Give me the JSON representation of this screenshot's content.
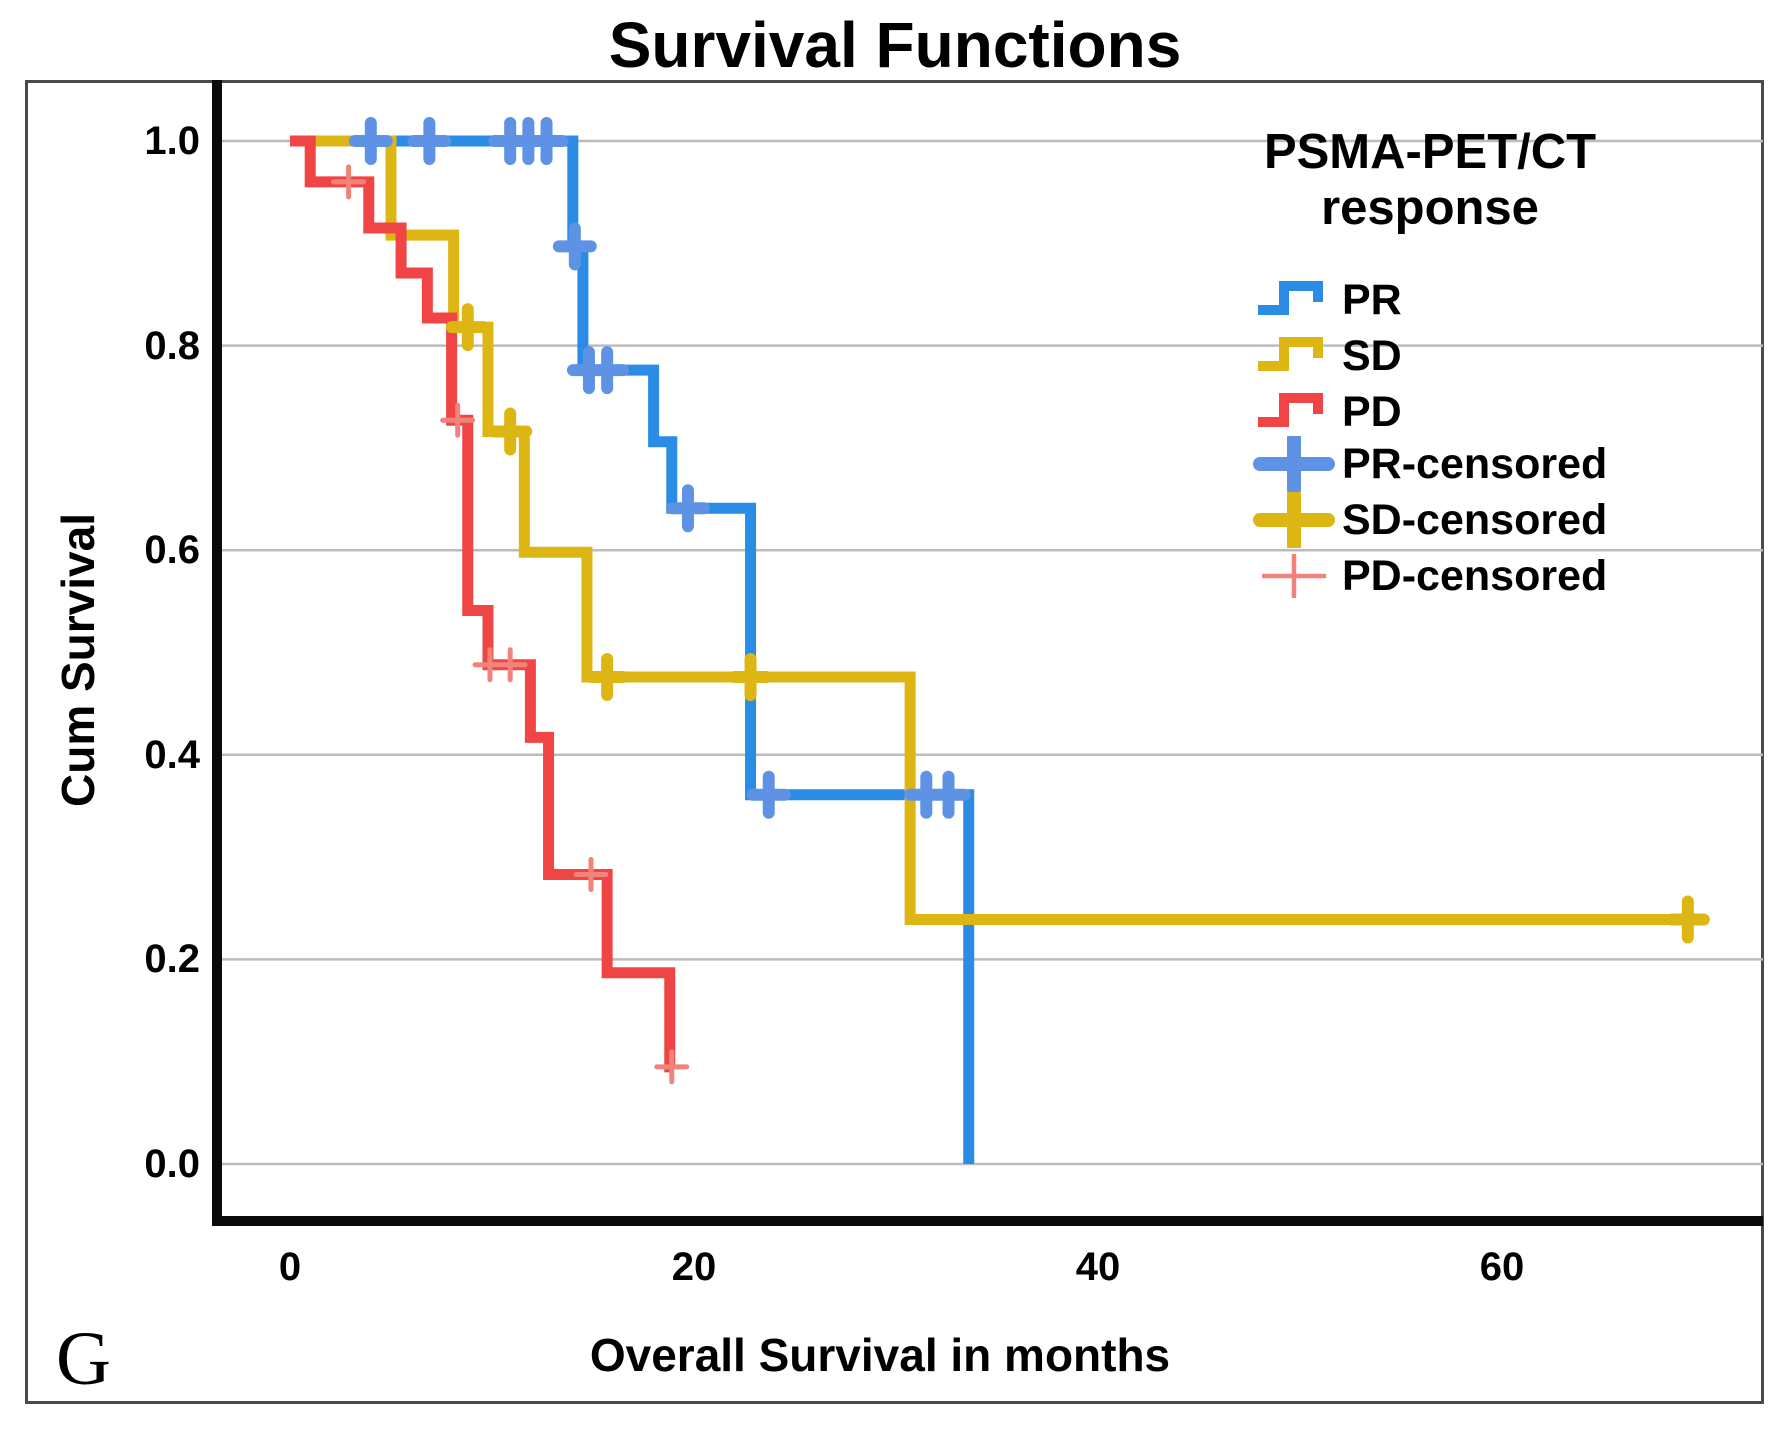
{
  "figure": {
    "title": "Survival Functions",
    "panel_label": "G",
    "x_axis": {
      "label": "Overall Survival in months",
      "tick_labels": [
        "0",
        "20",
        "40",
        "60"
      ],
      "tick_values": [
        0,
        20,
        40,
        60
      ]
    },
    "y_axis": {
      "label": "Cum Survival",
      "tick_labels": [
        "1.0",
        "0.8",
        "0.6",
        "0.4",
        "0.2",
        "0.0"
      ],
      "tick_values": [
        1.0,
        0.8,
        0.6,
        0.4,
        0.2,
        0.0
      ]
    }
  },
  "legend": {
    "title_line1": "PSMA-PET/CT",
    "title_line2": "response",
    "items": [
      {
        "label": "PR",
        "marker": "step",
        "color": "#2b8ce6"
      },
      {
        "label": "SD",
        "marker": "step",
        "color": "#ddb614"
      },
      {
        "label": "PD",
        "marker": "step",
        "color": "#ef4545"
      },
      {
        "label": "PR-censored",
        "marker": "plus",
        "color": "#5e92e4"
      },
      {
        "label": "SD-censored",
        "marker": "plus",
        "color": "#ddb614"
      },
      {
        "label": "PD-censored",
        "marker": "plus-thin",
        "color": "#f3837a"
      }
    ]
  },
  "chart_data": {
    "type": "line",
    "subtype": "kaplan-meier-step",
    "title": "Survival Functions",
    "xlabel": "Overall Survival in months",
    "ylabel": "Cum Survival",
    "xlim": [
      0,
      72
    ],
    "ylim": [
      0.0,
      1.0
    ],
    "xticks": [
      0,
      20,
      40,
      60
    ],
    "yticks": [
      0.0,
      0.2,
      0.4,
      0.6,
      0.8,
      1.0
    ],
    "grid": "horizontal",
    "gridline_color": "#bcbcbc",
    "axis_color": "#0a0a0a",
    "legend_position": "upper right",
    "series": [
      {
        "name": "PR",
        "color": "#2b8ce6",
        "censor_color": "#5e92e4",
        "censor_style": "thick",
        "start": [
          0,
          1.0
        ],
        "end_t": 33.6,
        "steps": [
          [
            14.0,
            0.897
          ],
          [
            14.5,
            0.776
          ],
          [
            18.0,
            0.706
          ],
          [
            18.9,
            0.641
          ],
          [
            22.8,
            0.361
          ],
          [
            33.6,
            0.0
          ]
        ],
        "censored": [
          [
            4.0,
            1.0
          ],
          [
            6.9,
            1.0
          ],
          [
            10.9,
            1.0
          ],
          [
            11.8,
            1.0
          ],
          [
            12.7,
            1.0
          ],
          [
            14.1,
            0.897
          ],
          [
            14.8,
            0.776
          ],
          [
            15.7,
            0.776
          ],
          [
            19.7,
            0.641
          ],
          [
            23.7,
            0.361
          ],
          [
            31.5,
            0.361
          ],
          [
            32.6,
            0.361
          ]
        ]
      },
      {
        "name": "SD",
        "color": "#ddb614",
        "censor_color": "#ddb614",
        "censor_style": "thick",
        "start": [
          0,
          1.0
        ],
        "end_t": 69.9,
        "steps": [
          [
            5.0,
            0.908
          ],
          [
            8.1,
            0.818
          ],
          [
            9.8,
            0.716
          ],
          [
            11.6,
            0.598
          ],
          [
            14.7,
            0.476
          ],
          [
            30.7,
            0.239
          ]
        ],
        "censored": [
          [
            8.8,
            0.818
          ],
          [
            10.9,
            0.716
          ],
          [
            15.7,
            0.476
          ],
          [
            22.8,
            0.476
          ],
          [
            69.2,
            0.239
          ]
        ]
      },
      {
        "name": "PD",
        "color": "#ef4545",
        "censor_color": "#f3837a",
        "censor_style": "thin",
        "start": [
          0,
          1.0
        ],
        "end_t": 19.0,
        "steps": [
          [
            1.0,
            0.96
          ],
          [
            3.9,
            0.915
          ],
          [
            5.5,
            0.871
          ],
          [
            6.8,
            0.827
          ],
          [
            8.0,
            0.727
          ],
          [
            8.8,
            0.541
          ],
          [
            9.8,
            0.488
          ],
          [
            11.9,
            0.417
          ],
          [
            12.8,
            0.283
          ],
          [
            15.7,
            0.187
          ],
          [
            18.8,
            0.095
          ]
        ],
        "censored": [
          [
            2.9,
            0.96
          ],
          [
            8.3,
            0.727
          ],
          [
            9.9,
            0.488
          ],
          [
            10.9,
            0.488
          ],
          [
            14.9,
            0.283
          ],
          [
            18.9,
            0.095
          ]
        ]
      }
    ]
  }
}
